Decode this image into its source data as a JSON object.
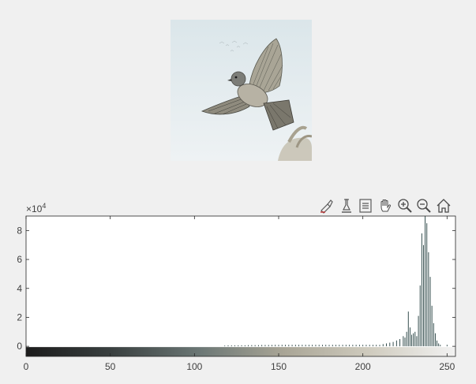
{
  "toolbar": {
    "buttons": [
      {
        "icon": "brush-data-icon",
        "tooltip": ""
      },
      {
        "icon": "data-cursor-icon",
        "tooltip": ""
      },
      {
        "icon": "insert-colorbar-icon",
        "tooltip": ""
      },
      {
        "icon": "pan-hand-icon",
        "tooltip": ""
      },
      {
        "icon": "zoom-in-icon",
        "tooltip": ""
      },
      {
        "icon": "zoom-out-icon",
        "tooltip": ""
      },
      {
        "icon": "restore-view-home-icon",
        "tooltip": ""
      }
    ]
  },
  "axes": {
    "exponent_base": "×10",
    "exponent_power": "4"
  },
  "chart_data": {
    "type": "bar",
    "title": "",
    "xlabel": "",
    "ylabel": "",
    "xlim": [
      0,
      255
    ],
    "ylim": [
      -0.7,
      9
    ],
    "y_scale_multiplier": 10000,
    "xticks": [
      0,
      50,
      100,
      150,
      200,
      250
    ],
    "yticks": [
      0,
      2,
      4,
      6,
      8
    ],
    "grid": false,
    "colorbar_gradient": [
      "#1c1c1c",
      "#3a4040",
      "#6a7674",
      "#a9a596",
      "#cfcbbe",
      "#f2f2f2"
    ],
    "series": [
      {
        "x": [
          118,
          120,
          122,
          124,
          126,
          128,
          130,
          132,
          134,
          136,
          138,
          140,
          142,
          144,
          146,
          148,
          150,
          152,
          154,
          156,
          158,
          160,
          162,
          164,
          166,
          168,
          170,
          172,
          174,
          176,
          178,
          180,
          182,
          184,
          186,
          188,
          190,
          192,
          194,
          196,
          198,
          200,
          202,
          204,
          206,
          208,
          210,
          212,
          214,
          216,
          218,
          220,
          222,
          224,
          225,
          226,
          227,
          228,
          229,
          230,
          231,
          232,
          233,
          234,
          235,
          236,
          237,
          238,
          239,
          240,
          241,
          242,
          243,
          244,
          245,
          246,
          250
        ],
        "values": [
          0.05,
          0.06,
          0.06,
          0.06,
          0.07,
          0.07,
          0.07,
          0.08,
          0.08,
          0.08,
          0.08,
          0.09,
          0.09,
          0.09,
          0.09,
          0.1,
          0.1,
          0.1,
          0.1,
          0.1,
          0.1,
          0.1,
          0.1,
          0.1,
          0.1,
          0.1,
          0.1,
          0.1,
          0.1,
          0.1,
          0.1,
          0.1,
          0.1,
          0.1,
          0.1,
          0.1,
          0.1,
          0.1,
          0.1,
          0.1,
          0.1,
          0.1,
          0.1,
          0.1,
          0.1,
          0.1,
          0.1,
          0.15,
          0.2,
          0.25,
          0.3,
          0.4,
          0.5,
          0.7,
          0.6,
          1.0,
          2.4,
          1.3,
          0.8,
          0.9,
          1.0,
          0.7,
          2.1,
          4.2,
          7.8,
          7.0,
          9.0,
          8.5,
          6.5,
          4.8,
          2.8,
          1.6,
          0.9,
          0.4,
          0.2,
          0.1,
          0.1
        ]
      }
    ]
  },
  "colors": {
    "bar": "#1f3b3b",
    "axis": "#262626",
    "tick_text": "#404040",
    "plot_bg": "#ffffff"
  }
}
